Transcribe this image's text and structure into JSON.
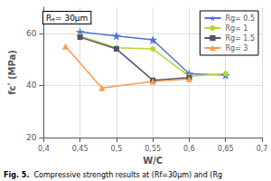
{
  "chart_data": {
    "type": "line",
    "xlabel": "W/C",
    "ylabel": "fcʹ (MPa)",
    "annotations": [
      "Rₑ= 30μm"
    ],
    "caption_bold": "Fig. 5.",
    "caption": "  Compressive strength results at (Rf=30μm) and (Rg",
    "xlim": [
      0.4,
      0.7
    ],
    "xticks": [
      {
        "value": 0.4,
        "label": "0,4"
      },
      {
        "value": 0.45,
        "label": "0,45"
      },
      {
        "value": 0.5,
        "label": "0,5"
      },
      {
        "value": 0.55,
        "label": "0,55"
      },
      {
        "value": 0.6,
        "label": "0,6"
      },
      {
        "value": 0.65,
        "label": "0,65"
      },
      {
        "value": 0.7,
        "label": "0,7"
      }
    ],
    "ylim": [
      20,
      70
    ],
    "yticks": [
      20,
      40,
      60
    ],
    "grid": true,
    "legend": "upper right",
    "series": [
      {
        "name": "Rg= 0.5",
        "marker": "star",
        "x": [
          0.45,
          0.5,
          0.55,
          0.6,
          0.65
        ],
        "values": [
          60.5,
          59.0,
          57.5,
          44.5,
          44.0
        ]
      },
      {
        "name": "Rg= 1",
        "marker": "circle",
        "x": [
          0.45,
          0.5,
          0.55,
          0.6,
          0.65
        ],
        "values": [
          59.0,
          54.5,
          54.0,
          43.5,
          44.5
        ]
      },
      {
        "name": "Rg= 1.5",
        "marker": "square",
        "x": [
          0.45,
          0.5,
          0.55,
          0.6
        ],
        "values": [
          58.5,
          54.0,
          42.0,
          43.0
        ]
      },
      {
        "name": "Rg= 3",
        "marker": "triangle",
        "x": [
          0.43,
          0.48,
          0.55,
          0.6
        ],
        "values": [
          55.0,
          39.0,
          41.5,
          42.5
        ]
      }
    ]
  }
}
